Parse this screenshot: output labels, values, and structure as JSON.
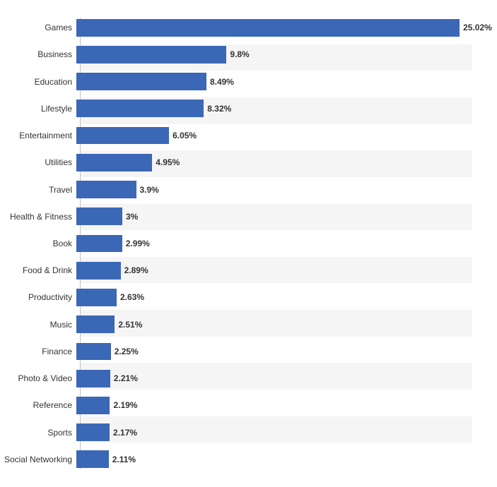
{
  "chart": {
    "type": "bar-horizontal",
    "xlim_max": 27.0,
    "background_color": "#ffffff",
    "band_color": "#f5f5f5",
    "axis_line_color": "#c0c0c0",
    "bar_color": "#3b67b7",
    "label_color": "#333333",
    "value_color": "#333333",
    "label_fontsize": 12,
    "value_fontsize": 12,
    "rows": [
      {
        "label": "Games",
        "value": 25.02,
        "display": "25.02%"
      },
      {
        "label": "Business",
        "value": 9.8,
        "display": "9.8%"
      },
      {
        "label": "Education",
        "value": 8.49,
        "display": "8.49%"
      },
      {
        "label": "Lifestyle",
        "value": 8.32,
        "display": "8.32%"
      },
      {
        "label": "Entertainment",
        "value": 6.05,
        "display": "6.05%"
      },
      {
        "label": "Utilities",
        "value": 4.95,
        "display": "4.95%"
      },
      {
        "label": "Travel",
        "value": 3.9,
        "display": "3.9%"
      },
      {
        "label": "Health & Fitness",
        "value": 3.0,
        "display": "3%"
      },
      {
        "label": "Book",
        "value": 2.99,
        "display": "2.99%"
      },
      {
        "label": "Food & Drink",
        "value": 2.89,
        "display": "2.89%"
      },
      {
        "label": "Productivity",
        "value": 2.63,
        "display": "2.63%"
      },
      {
        "label": "Music",
        "value": 2.51,
        "display": "2.51%"
      },
      {
        "label": "Finance",
        "value": 2.25,
        "display": "2.25%"
      },
      {
        "label": "Photo & Video",
        "value": 2.21,
        "display": "2.21%"
      },
      {
        "label": "Reference",
        "value": 2.19,
        "display": "2.19%"
      },
      {
        "label": "Sports",
        "value": 2.17,
        "display": "2.17%"
      },
      {
        "label": "Social Networking",
        "value": 2.11,
        "display": "2.11%"
      }
    ]
  }
}
